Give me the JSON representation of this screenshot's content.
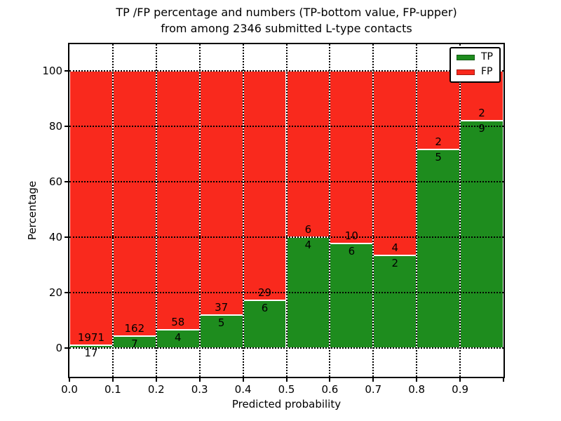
{
  "figure": {
    "title_line1": "TP /FP percentage and numbers (TP-bottom value, FP-upper)",
    "title_line2": "from among 2346 submitted L-type contacts"
  },
  "chart_data": {
    "type": "bar",
    "stacked": true,
    "title": "TP /FP percentage and numbers (TP-bottom value, FP-upper)\nfrom among 2346 submitted L-type contacts",
    "xlabel": "Predicted probability",
    "ylabel": "Percentage",
    "total_contacts": 2346,
    "xlim": [
      0.0,
      1.0
    ],
    "ylim": [
      -10.5,
      109.5
    ],
    "grid": true,
    "bin_edges": [
      0.0,
      0.1,
      0.2,
      0.3,
      0.4,
      0.5,
      0.6,
      0.7,
      0.8,
      0.9,
      1.0
    ],
    "x_tick_values": [
      0.0,
      0.1,
      0.2,
      0.3,
      0.4,
      0.5,
      0.6,
      0.7,
      0.8,
      0.9,
      1.0
    ],
    "x_tick_labels": [
      "0.0",
      "0.1",
      "0.2",
      "0.3",
      "0.4",
      "0.5",
      "0.6",
      "0.7",
      "0.8",
      "0.9",
      ""
    ],
    "y_tick_values": [
      0,
      20,
      40,
      60,
      80,
      100
    ],
    "y_tick_labels": [
      "0",
      "20",
      "40",
      "60",
      "80",
      "100"
    ],
    "series": [
      {
        "name": "TP",
        "color": "#1e8c1e",
        "counts": [
          17,
          7,
          4,
          5,
          6,
          4,
          6,
          2,
          5,
          9
        ],
        "percentages": [
          0.86,
          4.14,
          6.45,
          11.9,
          17.14,
          40.0,
          37.5,
          33.33,
          71.43,
          81.82
        ]
      },
      {
        "name": "FP",
        "color": "#f9291d",
        "counts": [
          1971,
          162,
          58,
          37,
          29,
          6,
          10,
          4,
          2,
          2
        ],
        "percentages": [
          99.14,
          95.86,
          93.55,
          88.1,
          82.86,
          60.0,
          62.5,
          66.67,
          28.57,
          18.18
        ]
      }
    ],
    "legend": {
      "position": "upper right",
      "entries": [
        "TP",
        "FP"
      ]
    }
  },
  "colors": {
    "tp_green": "#1e8c1e",
    "fp_red": "#f9291d",
    "axis": "#000000",
    "background": "#ffffff"
  }
}
